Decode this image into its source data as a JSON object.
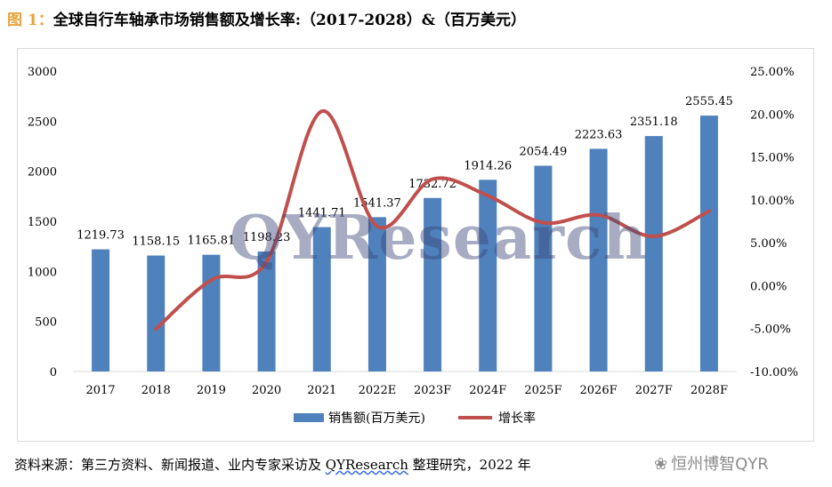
{
  "title": {
    "prefix": "图 1：",
    "text": "全球自行车轴承市场销售额及增长率:（2017-2028）&（百万美元）"
  },
  "chart_data": {
    "type": "bar",
    "categories": [
      "2017",
      "2018",
      "2019",
      "2020",
      "2021",
      "2022E",
      "2023F",
      "2024F",
      "2025F",
      "2026F",
      "2027F",
      "2028F"
    ],
    "series": [
      {
        "name": "销售额(百万美元)",
        "type": "bar",
        "axis": "left",
        "color": "#4f81bd",
        "values": [
          1219.73,
          1158.15,
          1165.81,
          1198.23,
          1441.71,
          1541.37,
          1732.72,
          1914.26,
          2054.49,
          2223.63,
          2351.18,
          2555.45
        ],
        "labels": [
          "1219.73",
          "1158.15",
          "1165.81",
          "1198.23",
          "1441.71",
          "1541.37",
          "1732.72",
          "1914.26",
          "2054.49",
          "2223.63",
          "2351.18",
          "2555.45"
        ]
      },
      {
        "name": "增长率",
        "type": "line",
        "axis": "right",
        "color": "#c0504d",
        "smooth": true,
        "values": [
          null,
          -5.05,
          0.66,
          2.78,
          20.32,
          6.91,
          12.41,
          10.48,
          7.33,
          8.23,
          5.74,
          8.69
        ]
      }
    ],
    "y_left": {
      "min": 0,
      "max": 3000,
      "ticks": [
        "0",
        "500",
        "1000",
        "1500",
        "2000",
        "2500",
        "3000"
      ]
    },
    "y_right": {
      "min": -10,
      "max": 25,
      "ticks": [
        "-10.00%",
        "-5.00%",
        "0.00%",
        "5.00%",
        "10.00%",
        "15.00%",
        "20.00%",
        "25.00%"
      ]
    },
    "grid": false,
    "legend_position": "bottom"
  },
  "watermark": "QYResearch",
  "footer": {
    "source_prefix": "资料来源：第三方资料、新闻报道、业内专家采访及 ",
    "source_brand": "QYResearch",
    "source_suffix": " 整理研究，2022 年"
  },
  "wechat_watermark": {
    "icon": "wechat-icon",
    "text": "恒州博智QYR"
  }
}
